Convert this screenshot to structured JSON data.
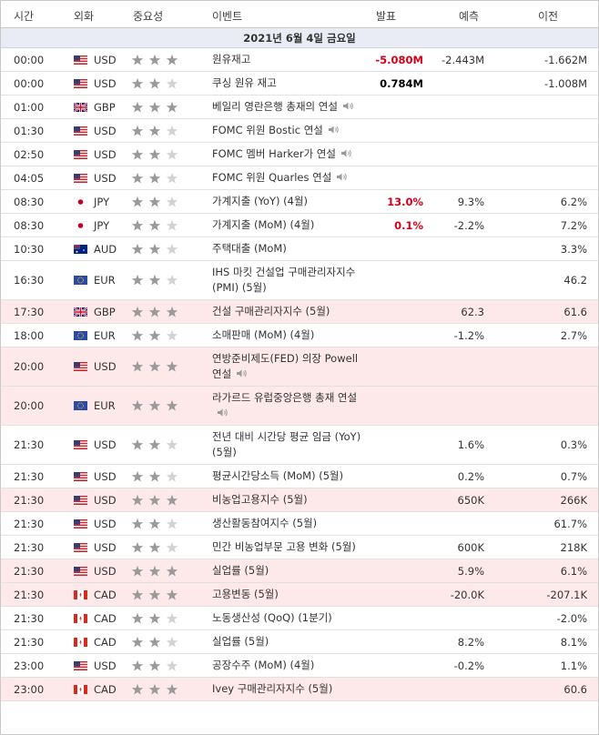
{
  "header": {
    "columns": [
      "시간",
      "외화",
      "중요성",
      "이벤트",
      "발표",
      "예측",
      "이전"
    ]
  },
  "table": {
    "date": "2021년 6월 4일 금요일",
    "actual_color": "#d0021b",
    "highlight_color": "#fde8ea",
    "rows": [
      {
        "time": "00:00",
        "currency": "USD",
        "importance": 3,
        "event": "원유재고",
        "actual": "-5.080M",
        "actual_red": true,
        "forecast": "-2.443M",
        "previous": "-1.662M"
      },
      {
        "time": "00:00",
        "currency": "USD",
        "importance": 2,
        "event": "쿠싱 원유 재고",
        "actual": "0.784M",
        "actual_red": false,
        "forecast": null,
        "previous": "-1.008M"
      },
      {
        "time": "01:00",
        "currency": "GBP",
        "importance": 3,
        "event": "베일리 영란은행 총재의 연설",
        "audio": true,
        "actual": null,
        "forecast": null,
        "previous": null
      },
      {
        "time": "01:30",
        "currency": "USD",
        "importance": 2,
        "event": "FOMC 위원 Bostic 연설",
        "audio": true,
        "actual": null,
        "forecast": null,
        "previous": null
      },
      {
        "time": "02:50",
        "currency": "USD",
        "importance": 2,
        "event": "FOMC 멤버 Harker가 연설",
        "audio": true,
        "actual": null,
        "forecast": null,
        "previous": null
      },
      {
        "time": "04:05",
        "currency": "USD",
        "importance": 2,
        "event": "FOMC 위원 Quarles 연설",
        "audio": true,
        "actual": null,
        "forecast": null,
        "previous": null
      },
      {
        "time": "08:30",
        "currency": "JPY",
        "importance": 2,
        "event": "가계지출 (YoY) (4월)",
        "actual": "13.0%",
        "actual_red": true,
        "forecast": "9.3%",
        "previous": "6.2%"
      },
      {
        "time": "08:30",
        "currency": "JPY",
        "importance": 2,
        "event": "가계지출 (MoM) (4월)",
        "actual": "0.1%",
        "actual_red": true,
        "forecast": "-2.2%",
        "previous": "7.2%"
      },
      {
        "time": "10:30",
        "currency": "AUD",
        "importance": 2,
        "event": "주택대출 (MoM)",
        "actual": null,
        "forecast": null,
        "previous": "3.3%"
      },
      {
        "time": "16:30",
        "currency": "EUR",
        "importance": 2,
        "event": "IHS 마킷 건설업 구매관리자지수 (PMI) (5월)",
        "actual": null,
        "forecast": null,
        "previous": "46.2"
      },
      {
        "time": "17:30",
        "currency": "GBP",
        "importance": 3,
        "event": "건설 구매관리자지수 (5월)",
        "highlight": true,
        "actual": null,
        "forecast": "62.3",
        "previous": "61.6"
      },
      {
        "time": "18:00",
        "currency": "EUR",
        "importance": 2,
        "event": "소매판매 (MoM) (4월)",
        "actual": null,
        "forecast": "-1.2%",
        "previous": "2.7%"
      },
      {
        "time": "20:00",
        "currency": "USD",
        "importance": 3,
        "event": "연방준비제도(FED) 의장 Powell 연설",
        "audio": true,
        "highlight": true,
        "actual": null,
        "forecast": null,
        "previous": null
      },
      {
        "time": "20:00",
        "currency": "EUR",
        "importance": 3,
        "event": "라가르드 유럽중앙은행 총재 연설",
        "audio": true,
        "highlight": true,
        "actual": null,
        "forecast": null,
        "previous": null
      },
      {
        "time": "21:30",
        "currency": "USD",
        "importance": 2,
        "event": "전년 대비 시간당 평균 임금 (YoY) (5월)",
        "actual": null,
        "forecast": "1.6%",
        "previous": "0.3%"
      },
      {
        "time": "21:30",
        "currency": "USD",
        "importance": 2,
        "event": "평균시간당소득 (MoM) (5월)",
        "actual": null,
        "forecast": "0.2%",
        "previous": "0.7%"
      },
      {
        "time": "21:30",
        "currency": "USD",
        "importance": 3,
        "event": "비농업고용지수 (5월)",
        "highlight": true,
        "actual": null,
        "forecast": "650K",
        "previous": "266K"
      },
      {
        "time": "21:30",
        "currency": "USD",
        "importance": 2,
        "event": "생산활동참여지수 (5월)",
        "actual": null,
        "forecast": null,
        "previous": "61.7%"
      },
      {
        "time": "21:30",
        "currency": "USD",
        "importance": 2,
        "event": "민간 비농업부문 고용 변화 (5월)",
        "actual": null,
        "forecast": "600K",
        "previous": "218K"
      },
      {
        "time": "21:30",
        "currency": "USD",
        "importance": 3,
        "event": "실업률 (5월)",
        "highlight": true,
        "actual": null,
        "forecast": "5.9%",
        "previous": "6.1%"
      },
      {
        "time": "21:30",
        "currency": "CAD",
        "importance": 3,
        "event": "고용변동 (5월)",
        "highlight": true,
        "actual": null,
        "forecast": "-20.0K",
        "previous": "-207.1K"
      },
      {
        "time": "21:30",
        "currency": "CAD",
        "importance": 2,
        "event": "노동생산성 (QoQ) (1분기)",
        "actual": null,
        "forecast": null,
        "previous": "-2.0%"
      },
      {
        "time": "21:30",
        "currency": "CAD",
        "importance": 2,
        "event": "실업률 (5월)",
        "actual": null,
        "forecast": "8.2%",
        "previous": "8.1%"
      },
      {
        "time": "23:00",
        "currency": "USD",
        "importance": 2,
        "event": "공장수주 (MoM) (4월)",
        "actual": null,
        "forecast": "-0.2%",
        "previous": "1.1%"
      },
      {
        "time": "23:00",
        "currency": "CAD",
        "importance": 3,
        "event": "Ivey 구매관리자지수 (5월)",
        "highlight": true,
        "actual": null,
        "forecast": null,
        "previous": "60.6"
      }
    ]
  }
}
